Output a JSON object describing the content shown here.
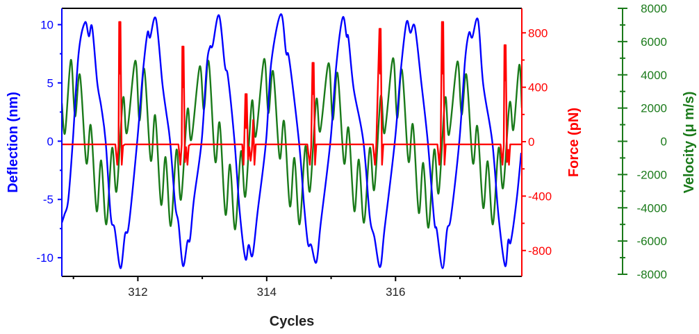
{
  "chart_data": {
    "type": "line",
    "title": "",
    "xlabel": "Cycles",
    "xlim": [
      310.82,
      317.96
    ],
    "x_ticks": [
      312,
      314,
      316
    ],
    "x_minor_ticks": [
      311,
      313,
      315,
      317
    ],
    "grid": false,
    "axes": {
      "deflection": {
        "label": "Deflection (nm)",
        "side": "left",
        "ylim": [
          -11.6,
          11.4
        ],
        "ticks": [
          10,
          5,
          0,
          -5,
          -10
        ],
        "color": "#0000ff"
      },
      "force": {
        "label": "Force (pN)",
        "side": "right",
        "ylim": [
          -990,
          980
        ],
        "ticks": [
          800,
          400,
          0,
          -400,
          -800
        ],
        "color": "#ff0000"
      },
      "velocity": {
        "label": "Velocity (μ m/s)",
        "side": "right-offset",
        "ylim": [
          -8000,
          8000
        ],
        "ticks": [
          8000,
          6000,
          4000,
          2000,
          0,
          -2000,
          -4000,
          -6000,
          -8000
        ],
        "color": "#1a7a1a"
      }
    },
    "series": [
      {
        "axis": "velocity",
        "x": [
          310.82,
          310.87,
          310.96,
          311.025,
          311.1,
          311.2,
          311.27,
          311.36,
          311.43,
          311.51,
          311.6,
          311.67,
          311.77,
          311.83,
          311.96,
          312.025,
          312.1,
          312.2,
          312.27,
          312.36,
          312.43,
          312.51,
          312.6,
          312.67,
          312.77,
          312.83,
          312.96,
          313.025,
          313.1,
          313.2,
          313.27,
          313.36,
          313.43,
          313.51,
          313.6,
          313.67,
          313.77,
          313.83,
          313.96,
          314.025,
          314.1,
          314.2,
          314.27,
          314.36,
          314.43,
          314.51,
          314.6,
          314.67,
          314.77,
          314.83,
          314.96,
          315.025,
          315.1,
          315.2,
          315.27,
          315.36,
          315.43,
          315.51,
          315.6,
          315.67,
          315.77,
          315.83,
          315.96,
          316.025,
          316.1,
          316.2,
          316.27,
          316.36,
          316.43,
          316.51,
          316.6,
          316.67,
          316.77,
          316.83,
          316.96,
          317.025,
          317.1,
          317.2,
          317.27,
          317.36,
          317.43,
          317.51,
          317.6,
          317.67,
          317.77,
          317.83,
          317.92,
          317.96
        ],
        "y": [
          2300,
          500,
          4900,
          1500,
          4000,
          -1300,
          950,
          -4200,
          -1150,
          -5000,
          -400,
          -3000,
          2600,
          500,
          4850,
          1250,
          4350,
          -1150,
          1550,
          -3800,
          -950,
          -5100,
          -500,
          -3500,
          1900,
          100,
          4500,
          1900,
          4800,
          -1200,
          1100,
          -4400,
          -1400,
          -5300,
          -600,
          -3300,
          2400,
          300,
          4950,
          1700,
          4200,
          -1000,
          1200,
          -3900,
          -1000,
          -5000,
          -300,
          -3000,
          2500,
          600,
          4700,
          1300,
          4100,
          -1300,
          800,
          -4200,
          -1100,
          -4900,
          -400,
          -2900,
          2700,
          500,
          5000,
          1400,
          4300,
          -1200,
          1000,
          -4300,
          -1300,
          -5200,
          -500,
          -3100,
          2600,
          400,
          4800,
          1600,
          4000,
          -1300,
          900,
          -4000,
          -1200,
          -5000,
          -400,
          -2800,
          2300,
          700,
          4600,
          2000
        ]
      },
      {
        "axis": "deflection",
        "x": [
          310.82,
          310.86,
          310.92,
          310.99,
          311.08,
          311.18,
          311.24,
          311.29,
          311.37,
          311.43,
          311.5,
          311.58,
          311.64,
          311.73,
          311.8,
          311.86,
          311.99,
          312.08,
          312.15,
          312.19,
          312.28,
          312.38,
          312.44,
          312.5,
          312.58,
          312.63,
          312.7,
          312.77,
          312.81,
          312.87,
          312.99,
          313.07,
          313.12,
          313.16,
          313.26,
          313.35,
          313.4,
          313.5,
          313.58,
          313.67,
          313.72,
          313.78,
          313.86,
          313.99,
          314.07,
          314.22,
          314.3,
          314.35,
          314.5,
          314.58,
          314.64,
          314.69,
          314.77,
          314.84,
          314.99,
          315.08,
          315.18,
          315.24,
          315.27,
          315.35,
          315.5,
          315.6,
          315.67,
          315.76,
          315.83,
          315.99,
          316.08,
          316.17,
          316.23,
          316.3,
          316.4,
          316.5,
          316.6,
          316.64,
          316.73,
          316.8,
          316.86,
          316.99,
          317.08,
          317.14,
          317.19,
          317.28,
          317.36,
          317.5,
          317.6,
          317.7,
          317.75,
          317.79,
          317.88,
          317.95
        ],
        "y": [
          -7.0,
          -6.3,
          -5.0,
          0,
          7.5,
          10.2,
          9.0,
          9.8,
          5.0,
          3.0,
          0,
          -6.5,
          -7.5,
          -10.9,
          -8.0,
          -7.2,
          0,
          6.0,
          9.3,
          8.9,
          10.5,
          5.0,
          2.5,
          0,
          -5.5,
          -7.0,
          -10.7,
          -8.6,
          -8.4,
          -5.0,
          0,
          6.5,
          8.1,
          8.2,
          10.8,
          6.5,
          5.5,
          0,
          -6.0,
          -10.1,
          -8.9,
          -9.8,
          -6.0,
          0,
          6.7,
          10.9,
          7.6,
          7.0,
          0,
          -5.5,
          -8.8,
          -8.9,
          -10.4,
          -7.0,
          0,
          6.5,
          10.6,
          9.0,
          8.8,
          4.5,
          0,
          -6.5,
          -8.2,
          -10.8,
          -7.5,
          0,
          6.0,
          10.2,
          9.3,
          9.8,
          5.0,
          0,
          -6.8,
          -7.6,
          -10.9,
          -7.6,
          -6.5,
          0,
          7.0,
          9.3,
          8.9,
          10.4,
          4.9,
          0,
          -6.5,
          -10.7,
          -8.5,
          -8.6,
          -5.0,
          -1.0
        ]
      },
      {
        "axis": "force",
        "x": [
          310.82,
          311.65,
          311.68,
          311.7,
          311.71,
          311.72,
          311.73,
          311.75,
          311.77,
          311.8,
          312.63,
          312.66,
          312.68,
          312.69,
          312.7,
          312.71,
          312.73,
          312.75,
          312.77,
          312.79,
          312.82,
          313.62,
          313.64,
          313.65,
          313.67,
          313.68,
          313.69,
          313.71,
          313.73,
          313.75,
          313.77,
          313.79,
          313.81,
          313.83,
          314.63,
          314.65,
          314.67,
          314.69,
          314.71,
          314.72,
          314.73,
          314.75,
          314.77,
          315.65,
          315.68,
          315.7,
          315.75,
          315.76,
          315.77,
          315.79,
          315.81,
          316.65,
          316.68,
          316.7,
          316.72,
          316.73,
          316.74,
          316.76,
          316.78,
          317.63,
          317.66,
          317.68,
          317.69,
          317.7,
          317.71,
          317.73,
          317.75,
          317.76,
          317.78,
          317.95
        ],
        "y": [
          -20,
          -20,
          -170,
          -30,
          880,
          500,
          880,
          -170,
          -30,
          -20,
          -20,
          -170,
          -20,
          700,
          400,
          700,
          -150,
          -40,
          -170,
          -30,
          -20,
          -20,
          -170,
          -30,
          350,
          100,
          350,
          -130,
          -40,
          -140,
          -60,
          160,
          -170,
          -20,
          -20,
          -100,
          -170,
          -40,
          580,
          350,
          580,
          -170,
          -20,
          -20,
          -170,
          -30,
          830,
          500,
          830,
          -170,
          -20,
          -20,
          -170,
          -30,
          880,
          500,
          880,
          -170,
          -20,
          -20,
          -170,
          -30,
          710,
          450,
          710,
          -150,
          -60,
          -170,
          -20,
          -20
        ]
      }
    ]
  }
}
